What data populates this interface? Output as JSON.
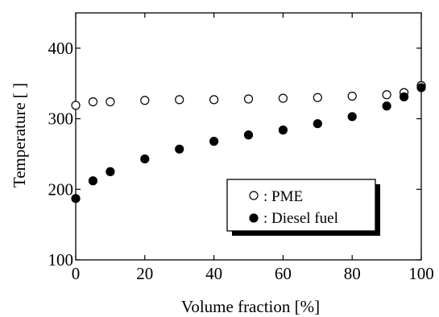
{
  "chart_data": {
    "type": "scatter",
    "title": "",
    "xlabel": "Volume fraction [%]",
    "ylabel": "Temperature [   ]",
    "xlim": [
      0,
      100
    ],
    "ylim": [
      100,
      450
    ],
    "x_ticks": [
      0,
      20,
      40,
      60,
      80,
      100
    ],
    "y_ticks": [
      100,
      200,
      300,
      400
    ],
    "x_tick_labels": [
      "0",
      "20",
      "40",
      "60",
      "80",
      "100"
    ],
    "y_tick_labels": [
      "100",
      "200",
      "300",
      "400"
    ],
    "grid": false,
    "legend_position": "lower-right",
    "series": [
      {
        "name": ": PME",
        "marker": "open-circle",
        "color": "#000000",
        "x": [
          0,
          5,
          10,
          20,
          30,
          40,
          50,
          60,
          70,
          80,
          90,
          95,
          100
        ],
        "y": [
          319,
          324,
          324,
          326,
          327,
          327,
          328,
          329,
          330,
          332,
          334,
          337,
          347
        ]
      },
      {
        "name": ": Diesel fuel",
        "marker": "filled-circle",
        "color": "#000000",
        "x": [
          0,
          5,
          10,
          20,
          30,
          40,
          50,
          60,
          70,
          80,
          90,
          95,
          100
        ],
        "y": [
          187,
          212,
          225,
          243,
          257,
          268,
          277,
          284,
          293,
          303,
          318,
          331,
          344
        ]
      }
    ]
  }
}
